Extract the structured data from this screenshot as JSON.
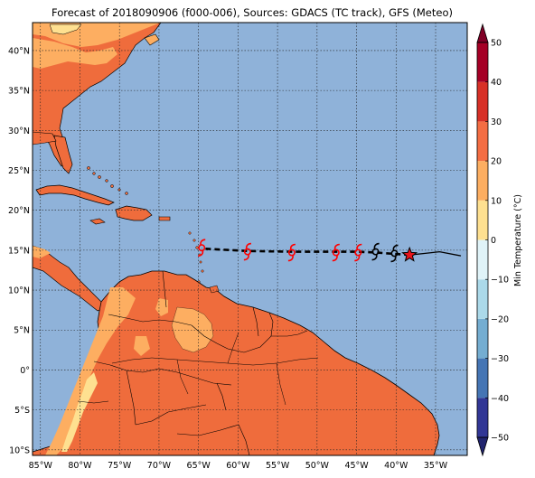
{
  "title": "Forecast of 2018090906 (f000-006), Sources: GDACS (TC track), GFS (Meteo)",
  "map": {
    "lon_ticks": [
      "85°W",
      "80°W",
      "75°W",
      "70°W",
      "65°W",
      "60°W",
      "55°W",
      "50°W",
      "45°W",
      "40°W",
      "35°W"
    ],
    "lat_ticks": [
      "40°N",
      "35°N",
      "30°N",
      "25°N",
      "20°N",
      "15°N",
      "10°N",
      "5°N",
      "0°",
      "5°S",
      "10°S"
    ],
    "lon_values": [
      -85,
      -80,
      -75,
      -70,
      -65,
      -60,
      -55,
      -50,
      -45,
      -40,
      -35
    ],
    "lat_values": [
      40,
      35,
      30,
      25,
      20,
      15,
      10,
      5,
      0,
      -5,
      -10
    ],
    "lon_range": [
      -86,
      -31
    ],
    "lat_range": [
      -10.7,
      43.5
    ],
    "ocean_color": "#8fb2d9",
    "land_color": "#ef6c3c"
  },
  "track": {
    "past_color": "#000000",
    "forecast_color": "#ff0000",
    "current_position": {
      "lon": -38.3,
      "lat": 14.4
    },
    "past_points": [
      {
        "lon": -31.8,
        "lat": 14.3
      },
      {
        "lon": -34.5,
        "lat": 14.8
      },
      {
        "lon": -36.3,
        "lat": 14.6
      },
      {
        "lon": -38.3,
        "lat": 14.4
      }
    ],
    "forecast_points": [
      {
        "lon": -38.3,
        "lat": 14.4
      },
      {
        "lon": -42.5,
        "lat": 14.7
      },
      {
        "lon": -44.8,
        "lat": 14.8
      },
      {
        "lon": -47.5,
        "lat": 14.8
      },
      {
        "lon": -53.0,
        "lat": 14.8
      },
      {
        "lon": -58.7,
        "lat": 14.9
      },
      {
        "lon": -64.6,
        "lat": 15.2
      }
    ],
    "storm_symbols": [
      {
        "lon": -40.2,
        "lat": 14.6,
        "color": "#000000"
      },
      {
        "lon": -42.6,
        "lat": 14.8,
        "color": "#000000"
      },
      {
        "lon": -44.8,
        "lat": 14.7,
        "color": "#ff0000"
      },
      {
        "lon": -47.6,
        "lat": 14.7,
        "color": "#ff0000"
      },
      {
        "lon": -53.2,
        "lat": 14.7,
        "color": "#ff0000"
      },
      {
        "lon": -58.8,
        "lat": 14.8,
        "color": "#ff0000"
      },
      {
        "lon": -64.6,
        "lat": 15.3,
        "color": "#ff0000"
      }
    ]
  },
  "colorbar": {
    "label": "Min Temperature (°C)",
    "ticks": [
      "50",
      "40",
      "30",
      "20",
      "10",
      "0",
      "−10",
      "−20",
      "−30",
      "−40",
      "−50"
    ],
    "tick_values": [
      50,
      40,
      30,
      20,
      10,
      0,
      -10,
      -20,
      -30,
      -40,
      -50
    ],
    "range": [
      -50,
      50
    ],
    "colors": [
      "#313695",
      "#4575b4",
      "#74add1",
      "#abd9e9",
      "#e0f3f8",
      "#fee090",
      "#fdae61",
      "#f46d43",
      "#d73027",
      "#a50026"
    ],
    "under_color": "#21246e",
    "over_color": "#800026"
  }
}
